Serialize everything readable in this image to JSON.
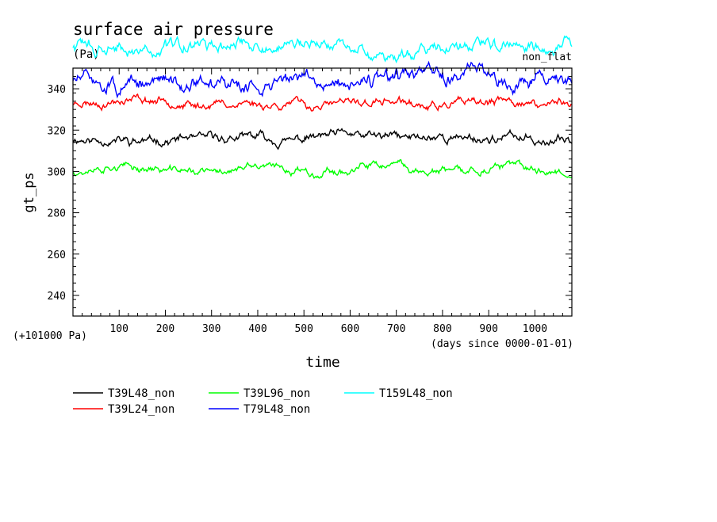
{
  "chart_data": {
    "type": "line",
    "title": "surface air pressure",
    "units": "(Pa)",
    "corner_label": "non_flat",
    "ylabel": "gt_ps",
    "xlabel": "time",
    "x_unit_note": "(days since 0000-01-01)",
    "y_offset_note": "(+101000 Pa)",
    "xlim": [
      0,
      1080
    ],
    "ylim": [
      230,
      350
    ],
    "x_ticks": [
      100,
      200,
      300,
      400,
      500,
      600,
      700,
      800,
      900,
      1000
    ],
    "y_ticks": [
      240,
      260,
      280,
      300,
      320,
      340
    ],
    "grid": false,
    "legend_position": "bottom",
    "series": [
      {
        "name": "T39L48_non",
        "color": "#000000",
        "mean": 316,
        "amp": 2.8,
        "seed": 11
      },
      {
        "name": "T39L24_non",
        "color": "#ff0000",
        "mean": 333,
        "amp": 2.6,
        "seed": 23
      },
      {
        "name": "T39L96_non",
        "color": "#00ff00",
        "mean": 300.5,
        "amp": 2.4,
        "seed": 37
      },
      {
        "name": "T79L48_non",
        "color": "#0000ff",
        "mean": 344,
        "amp": 4.5,
        "seed": 51
      },
      {
        "name": "T159L48_non",
        "color": "#00ffff",
        "mean": 360,
        "amp": 4.0,
        "seed": 73
      }
    ]
  }
}
